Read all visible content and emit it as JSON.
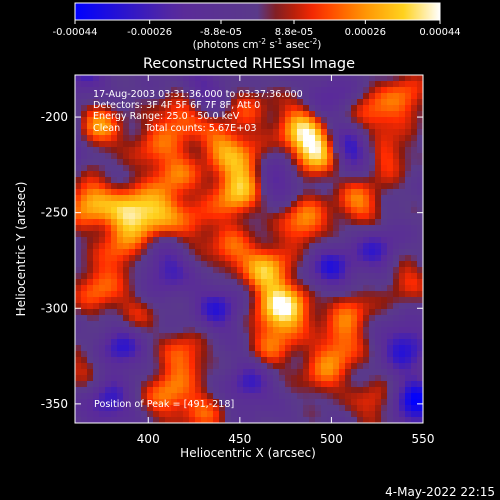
{
  "colorbar": {
    "tick_labels": [
      "-0.00044",
      "-0.00026",
      "-8.8e-05",
      "8.8e-05",
      "0.00026",
      "0.00044"
    ],
    "tick_values": [
      -0.00044,
      -0.00026,
      -8.8e-05,
      8.8e-05,
      0.00026,
      0.00044
    ],
    "range": [
      -0.00044,
      0.00044
    ],
    "unit_prefix": "(photons cm",
    "unit_exp1": "-2",
    "unit_mid": " s",
    "unit_exp2": "-1",
    "unit_end": " asec",
    "unit_exp3": "-2",
    "unit_close": ")",
    "colors": [
      "#0000ff",
      "#5a2a9a",
      "#5a3a8a",
      "#8a1a10",
      "#ff2a00",
      "#ff8c00",
      "#ffd21e",
      "#ffffff"
    ]
  },
  "chart_data": {
    "type": "heatmap",
    "title": "Reconstructed RHESSI Image",
    "xlabel": "Heliocentric X (arcsec)",
    "ylabel": "Heliocentric Y (arcsec)",
    "xlim": [
      360,
      550
    ],
    "ylim": [
      -360,
      -178
    ],
    "xticks": [
      400,
      450,
      500,
      550
    ],
    "yticks": [
      -200,
      -250,
      -300,
      -350
    ],
    "xtick_labels": [
      "400",
      "450",
      "500",
      "550"
    ],
    "ytick_labels": [
      "-200",
      "-250",
      "-300",
      "-350"
    ],
    "peak_position": [
      491,
      -218
    ],
    "annotations": [
      "17-Aug-2003 03:31:36.000 to 03:37:36.000",
      "Detectors: 3F 4F 5F 6F 7F 8F, Att 0",
      "Energy Range: 25.0 - 50.0 keV",
      "Clean",
      "Total counts: 5.67E+03",
      "Position of Peak = [491,-218]"
    ],
    "blobs": [
      {
        "x": 372,
        "y": -205,
        "v": 0.0003
      },
      {
        "x": 368,
        "y": -245,
        "v": 0.00034
      },
      {
        "x": 390,
        "y": -250,
        "v": 0.00036
      },
      {
        "x": 385,
        "y": -270,
        "v": 0.00022
      },
      {
        "x": 372,
        "y": -290,
        "v": 0.00024
      },
      {
        "x": 405,
        "y": -250,
        "v": 0.00028
      },
      {
        "x": 402,
        "y": -215,
        "v": 0.00018
      },
      {
        "x": 418,
        "y": -200,
        "v": 0.00026
      },
      {
        "x": 415,
        "y": -230,
        "v": 0.00024
      },
      {
        "x": 425,
        "y": -255,
        "v": 0.00018
      },
      {
        "x": 440,
        "y": -215,
        "v": 0.00026
      },
      {
        "x": 448,
        "y": -240,
        "v": 0.00034
      },
      {
        "x": 455,
        "y": -225,
        "v": 0.00024
      },
      {
        "x": 445,
        "y": -270,
        "v": 0.00022
      },
      {
        "x": 465,
        "y": -280,
        "v": 0.00034
      },
      {
        "x": 470,
        "y": -300,
        "v": 0.0003
      },
      {
        "x": 468,
        "y": -320,
        "v": 0.00022
      },
      {
        "x": 420,
        "y": -325,
        "v": 0.00024
      },
      {
        "x": 410,
        "y": -345,
        "v": 0.00026
      },
      {
        "x": 430,
        "y": -355,
        "v": 0.0002
      },
      {
        "x": 485,
        "y": -255,
        "v": 0.0003
      },
      {
        "x": 491,
        "y": -218,
        "v": 0.00044
      },
      {
        "x": 482,
        "y": -205,
        "v": 0.0003
      },
      {
        "x": 480,
        "y": -300,
        "v": 0.00022
      },
      {
        "x": 495,
        "y": -335,
        "v": 0.0002
      },
      {
        "x": 505,
        "y": -320,
        "v": 0.00024
      },
      {
        "x": 510,
        "y": -300,
        "v": 0.00022
      },
      {
        "x": 515,
        "y": -245,
        "v": 0.00026
      },
      {
        "x": 520,
        "y": -200,
        "v": 0.00026
      },
      {
        "x": 530,
        "y": -220,
        "v": 0.00022
      },
      {
        "x": 525,
        "y": -350,
        "v": 0.0002
      },
      {
        "x": 540,
        "y": -285,
        "v": 0.00018
      },
      {
        "x": 365,
        "y": -330,
        "v": 0.00014
      },
      {
        "x": 392,
        "y": -305,
        "v": 0.00016
      },
      {
        "x": 540,
        "y": -190,
        "v": 0.00024
      },
      {
        "x": 455,
        "y": -195,
        "v": 0.00016
      }
    ],
    "holes": [
      {
        "x": 352,
        "y": -215,
        "v": -0.0003
      },
      {
        "x": 365,
        "y": -180,
        "v": -0.0002
      },
      {
        "x": 410,
        "y": -280,
        "v": -0.00024
      },
      {
        "x": 385,
        "y": -320,
        "v": -0.0003
      },
      {
        "x": 378,
        "y": -350,
        "v": -0.00026
      },
      {
        "x": 455,
        "y": -340,
        "v": -0.00024
      },
      {
        "x": 438,
        "y": -300,
        "v": -0.00026
      },
      {
        "x": 500,
        "y": -280,
        "v": -0.00028
      },
      {
        "x": 525,
        "y": -270,
        "v": -0.00024
      },
      {
        "x": 512,
        "y": -215,
        "v": -0.00034
      },
      {
        "x": 470,
        "y": -230,
        "v": -0.00024
      },
      {
        "x": 545,
        "y": -350,
        "v": -0.0004
      },
      {
        "x": 540,
        "y": -320,
        "v": -0.0003
      },
      {
        "x": 500,
        "y": -190,
        "v": -0.00018
      },
      {
        "x": 430,
        "y": -185,
        "v": -0.00018
      }
    ]
  },
  "footer": {
    "timestamp": "4-May-2022 22:15"
  }
}
